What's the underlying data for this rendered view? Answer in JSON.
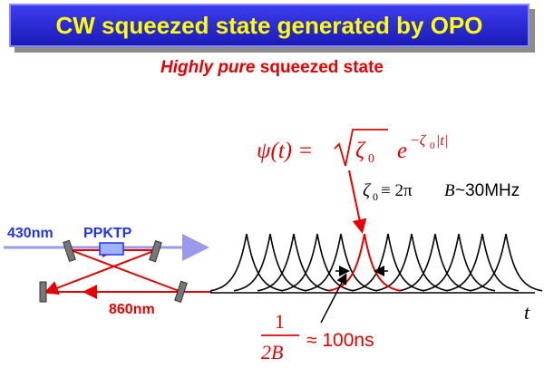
{
  "title": "CW squeezed state generated by OPO",
  "subtitle": {
    "italic_part": "Highly pure",
    "rest": "squeezed state"
  },
  "setup": {
    "pump_wavelength": "430nm",
    "crystal_label": "PPKTP",
    "output_wavelength": "860nm"
  },
  "formula": {
    "lhs": "ψ(t) = ",
    "sqrt_arg": "ζ",
    "sqrt_sub": "0",
    "exp_base": "e",
    "exp_power": "−ζ",
    "exp_sub": "0",
    "exp_tail": "|t|"
  },
  "zeta_def": {
    "sym": "ζ",
    "sub": "0",
    "equiv": " ≡ 2π",
    "var": "B",
    "approx": " ~30MHz"
  },
  "time_axis_label": "t",
  "width_note": {
    "numerator": "1",
    "denominator": "2B",
    "approx": "≈ 100ns"
  },
  "colors": {
    "banner": "#2323d6",
    "title_text": "#ffff00",
    "accent_red": "#e60000",
    "label_blue": "#2233ee",
    "pump_beam": "#9999ee"
  },
  "icons": [
    "mirror-icon",
    "crystal-icon",
    "beam-arrow-icon"
  ]
}
